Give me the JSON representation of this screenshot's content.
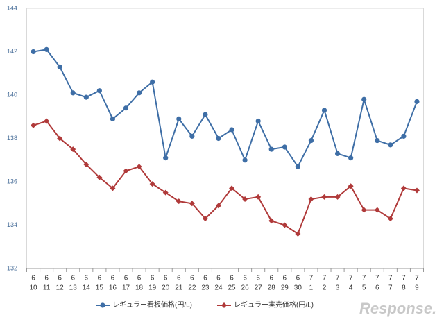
{
  "chart_data": {
    "type": "line",
    "categories": [
      [
        "6",
        "10"
      ],
      [
        "6",
        "11"
      ],
      [
        "6",
        "12"
      ],
      [
        "6",
        "13"
      ],
      [
        "6",
        "14"
      ],
      [
        "6",
        "15"
      ],
      [
        "6",
        "16"
      ],
      [
        "6",
        "17"
      ],
      [
        "6",
        "18"
      ],
      [
        "6",
        "19"
      ],
      [
        "6",
        "20"
      ],
      [
        "6",
        "21"
      ],
      [
        "6",
        "22"
      ],
      [
        "6",
        "23"
      ],
      [
        "6",
        "24"
      ],
      [
        "6",
        "25"
      ],
      [
        "6",
        "26"
      ],
      [
        "6",
        "27"
      ],
      [
        "6",
        "28"
      ],
      [
        "6",
        "29"
      ],
      [
        "6",
        "30"
      ],
      [
        "7",
        "1"
      ],
      [
        "7",
        "2"
      ],
      [
        "7",
        "3"
      ],
      [
        "7",
        "4"
      ],
      [
        "7",
        "5"
      ],
      [
        "7",
        "6"
      ],
      [
        "7",
        "7"
      ],
      [
        "7",
        "8"
      ],
      [
        "7",
        "9"
      ]
    ],
    "series": [
      {
        "name": "レギュラー看板価格(円/L)",
        "color": "#3e6ea6",
        "marker": "circle",
        "values": [
          142.0,
          142.1,
          141.3,
          140.1,
          139.9,
          140.2,
          138.9,
          139.4,
          140.1,
          140.6,
          137.1,
          138.9,
          138.1,
          139.1,
          138.0,
          138.4,
          137.0,
          138.8,
          137.5,
          137.6,
          136.7,
          137.9,
          139.3,
          137.3,
          137.1,
          139.8,
          137.9,
          137.7,
          138.1,
          139.7
        ]
      },
      {
        "name": "レギュラー実売価格(円/L)",
        "color": "#b03a3a",
        "marker": "diamond",
        "values": [
          138.6,
          138.8,
          138.0,
          137.5,
          136.8,
          136.2,
          135.7,
          136.5,
          136.7,
          135.9,
          135.5,
          135.1,
          135.0,
          134.3,
          134.9,
          135.7,
          135.2,
          135.3,
          134.2,
          134.0,
          133.6,
          135.2,
          135.3,
          135.3,
          135.8,
          134.7,
          134.7,
          134.3,
          135.7,
          135.6
        ]
      }
    ],
    "ylim": [
      132,
      144
    ],
    "yticks": [
      132,
      134,
      136,
      138,
      140,
      142,
      144
    ],
    "legend": "bottom",
    "watermark": "Response."
  }
}
